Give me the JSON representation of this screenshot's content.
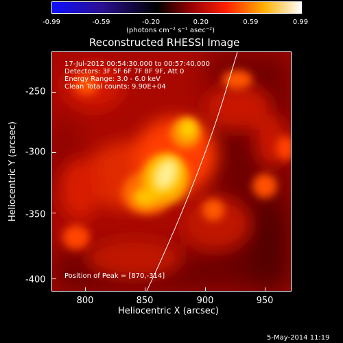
{
  "colorbar": {
    "ticks": [
      "-0.99",
      "-0.59",
      "-0.20",
      "0.20",
      "0.59",
      "0.99"
    ],
    "units": "(photons cm⁻² s⁻¹ asec⁻²)"
  },
  "title": "Reconstructed RHESSI Image",
  "info": {
    "time": "17-Jul-2012 00:54:30.000 to 00:57:40.000",
    "detectors": "Detectors: 3F 5F 6F 7F 8F 9F, Att 0",
    "energy": "Energy Range: 3.0 - 6.0 keV",
    "clean": "Clean     Total counts: 9.90E+04",
    "peak": "Position of Peak = [870,-314]"
  },
  "axes": {
    "xlabel": "Heliocentric X (arcsec)",
    "ylabel": "Heliocentric Y (arcsec)",
    "xticks": [
      "800",
      "850",
      "900",
      "950"
    ],
    "yticks": [
      "-250",
      "-300",
      "-350",
      "-400"
    ]
  },
  "footer": {
    "date": "5-May-2014 11:19"
  },
  "colors": {
    "hot": "#ffffff",
    "yellow": "#ffe020",
    "orange": "#ff8000",
    "red": "#d01000",
    "dark": "#400000"
  }
}
